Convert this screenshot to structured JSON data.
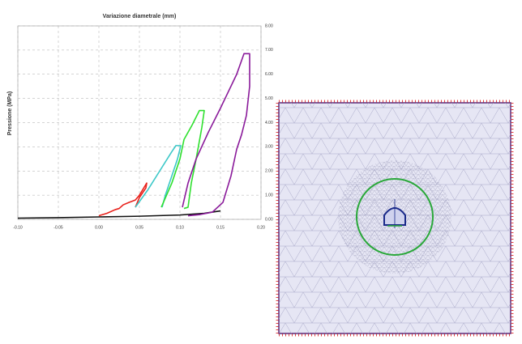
{
  "chart_data": {
    "type": "line",
    "title": "Variazione diametrale (mm)",
    "y_label": "Pressione (MPa)",
    "xlim": [
      -0.1,
      0.2
    ],
    "ylim": [
      0,
      8
    ],
    "grid": true,
    "xticks": [
      {
        "value": -0.1,
        "label": "-0.10"
      },
      {
        "value": -0.05,
        "label": "-0.05"
      },
      {
        "value": 0,
        "label": "0.00"
      },
      {
        "value": 0.05,
        "label": "0.05"
      },
      {
        "value": 0.1,
        "label": "0.10"
      },
      {
        "value": 0.15,
        "label": "0.15"
      },
      {
        "value": 0.2,
        "label": "0.20"
      }
    ],
    "yticks": [
      {
        "value": 0,
        "label": "0.00"
      },
      {
        "value": 1,
        "label": "1.00"
      },
      {
        "value": 2,
        "label": "2.00"
      },
      {
        "value": 3,
        "label": "3.00"
      },
      {
        "value": 4,
        "label": "4.00"
      },
      {
        "value": 5,
        "label": "5.00"
      },
      {
        "value": 6,
        "label": "6.00"
      },
      {
        "value": 7,
        "label": "7.00"
      },
      {
        "value": 8,
        "label": "8.00"
      }
    ],
    "series": [
      {
        "color": "#111111",
        "x": [
          -0.1,
          -0.05,
          0,
          0.05,
          0.1,
          0.13,
          0.15
        ],
        "values": [
          0.05,
          0.07,
          0.1,
          0.13,
          0.18,
          0.25,
          0.35
        ]
      },
      {
        "color": "#e8201a",
        "x": [
          0.0,
          0.01,
          0.02,
          0.025,
          0.03,
          0.037,
          0.045,
          0.05,
          0.059,
          0.058,
          0.05,
          0.045
        ],
        "values": [
          0.15,
          0.25,
          0.4,
          0.45,
          0.6,
          0.7,
          0.8,
          1.0,
          1.5,
          1.3,
          0.9,
          0.5
        ]
      },
      {
        "color": "#3cc8c8",
        "x": [
          0.045,
          0.06,
          0.075,
          0.09,
          0.095,
          0.101,
          0.097,
          0.09,
          0.082,
          0.078
        ],
        "values": [
          0.5,
          1.2,
          2.0,
          2.8,
          3.05,
          3.05,
          2.5,
          1.8,
          1.0,
          0.5
        ]
      },
      {
        "color": "#2ee02e",
        "x": [
          0.077,
          0.09,
          0.1,
          0.105,
          0.115,
          0.124,
          0.13,
          0.127,
          0.12,
          0.114,
          0.11,
          0.105
        ],
        "values": [
          0.5,
          1.5,
          2.5,
          3.3,
          3.9,
          4.5,
          4.5,
          3.8,
          2.5,
          1.5,
          0.5,
          0.45
        ]
      },
      {
        "color": "#8a1a9a",
        "x": [
          0.103,
          0.11,
          0.12,
          0.135,
          0.15,
          0.16,
          0.17,
          0.179,
          0.186,
          0.186,
          0.182,
          0.176,
          0.17,
          0.163,
          0.153,
          0.14,
          0.125,
          0.11
        ],
        "values": [
          0.5,
          1.5,
          2.5,
          3.6,
          4.6,
          5.3,
          6.0,
          6.85,
          6.85,
          5.5,
          4.3,
          3.5,
          2.9,
          1.8,
          0.7,
          0.3,
          0.2,
          0.15
        ]
      }
    ]
  }
}
